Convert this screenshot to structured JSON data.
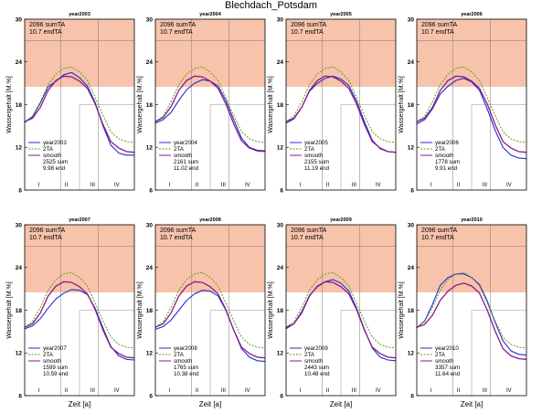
{
  "title": "Blechdach_Potsdam",
  "colors": {
    "zone": "#f6b99c",
    "year": "#1f2fd0",
    "ta2": "#5c9e1a",
    "smooth": "#8a1a86",
    "gray": "#7a7a7a",
    "frame": "#000000"
  },
  "chart_data": [
    {
      "type": "line",
      "title": "year2003",
      "ylabel": "Wassergehalt [M.%]",
      "xlabel": "",
      "ylim": [
        6,
        30
      ],
      "yticks": [
        6,
        12,
        18,
        24,
        30
      ],
      "xtick_labels": [
        "I",
        "II",
        "III",
        "IV"
      ],
      "zone": [
        20.5,
        30
      ],
      "ref_text": [
        "2096 sumTA",
        "10.7 endTA"
      ],
      "legend": [
        "year2003",
        "2TA",
        "smooth",
        "2525 sum",
        "9.98 end"
      ],
      "series": [
        {
          "name": "year2003",
          "values": [
            15.5,
            16.3,
            18.2,
            20.5,
            21.3,
            22.2,
            22.5,
            21.8,
            20.6,
            18.3,
            15.0,
            12.3,
            11.2,
            10.9,
            10.9
          ]
        },
        {
          "name": "2TA",
          "values": [
            15.6,
            16.4,
            18.4,
            20.8,
            22.3,
            23.1,
            23.3,
            22.6,
            21.4,
            19.0,
            16.5,
            14.2,
            13.2,
            12.8,
            12.7
          ]
        },
        {
          "name": "smooth",
          "values": [
            15.6,
            16.1,
            17.6,
            20.0,
            21.4,
            22.0,
            21.9,
            21.3,
            20.3,
            18.1,
            15.2,
            12.8,
            11.9,
            11.4,
            11.3
          ]
        }
      ]
    },
    {
      "type": "line",
      "title": "year2004",
      "ylabel": "Wassergehalt [M.%]",
      "xlabel": "",
      "ylim": [
        6,
        30
      ],
      "yticks": [
        6,
        12,
        18,
        24,
        30
      ],
      "xtick_labels": [
        "I",
        "II",
        "III",
        "IV"
      ],
      "zone": [
        20.5,
        30
      ],
      "ref_text": [
        "2096 sumTA",
        "10.7 endTA"
      ],
      "legend": [
        "year2004",
        "2TA",
        "smooth",
        "2161 sum",
        "11.02 end"
      ],
      "series": [
        {
          "name": "year2004",
          "values": [
            15.4,
            15.9,
            16.9,
            18.6,
            20.1,
            21.0,
            21.5,
            21.3,
            20.6,
            18.6,
            15.9,
            13.3,
            12.0,
            11.6,
            11.5
          ]
        },
        {
          "name": "2TA",
          "values": [
            15.6,
            16.4,
            18.4,
            20.8,
            22.3,
            23.1,
            23.3,
            22.6,
            21.4,
            19.0,
            16.5,
            14.2,
            13.2,
            12.8,
            12.7
          ]
        },
        {
          "name": "smooth",
          "values": [
            15.6,
            16.2,
            17.7,
            20.0,
            21.4,
            22.0,
            21.9,
            21.3,
            20.3,
            18.1,
            15.3,
            12.9,
            11.9,
            11.5,
            11.4
          ]
        }
      ]
    },
    {
      "type": "line",
      "title": "year2005",
      "ylabel": "Wassergehalt [M.%]",
      "xlabel": "",
      "ylim": [
        6,
        30
      ],
      "yticks": [
        6,
        12,
        18,
        24,
        30
      ],
      "xtick_labels": [
        "I",
        "II",
        "III",
        "IV"
      ],
      "zone": [
        20.5,
        30
      ],
      "ref_text": [
        "2096 sumTA",
        "10.7 endTA"
      ],
      "legend": [
        "year2005",
        "2TA",
        "smooth",
        "2155 sum",
        "11.19 end"
      ],
      "series": [
        {
          "name": "year2005",
          "values": [
            15.4,
            16.0,
            17.6,
            19.9,
            21.0,
            21.7,
            22.0,
            21.6,
            20.7,
            18.5,
            15.6,
            13.0,
            11.8,
            11.4,
            11.3
          ]
        },
        {
          "name": "2TA",
          "values": [
            15.6,
            16.4,
            18.4,
            20.8,
            22.3,
            23.1,
            23.3,
            22.6,
            21.4,
            19.0,
            16.5,
            14.2,
            13.2,
            12.8,
            12.7
          ]
        },
        {
          "name": "smooth",
          "values": [
            15.6,
            16.1,
            17.6,
            20.0,
            21.4,
            22.0,
            21.9,
            21.3,
            20.3,
            18.1,
            15.2,
            12.8,
            11.9,
            11.4,
            11.3
          ]
        }
      ]
    },
    {
      "type": "line",
      "title": "year2006",
      "ylabel": "Wassergehalt [M.%]",
      "xlabel": "",
      "ylim": [
        6,
        30
      ],
      "yticks": [
        6,
        12,
        18,
        24,
        30
      ],
      "xtick_labels": [
        "I",
        "II",
        "III",
        "IV"
      ],
      "zone": [
        20.5,
        30
      ],
      "ref_text": [
        "2096 sumTA",
        "10.7 endTA"
      ],
      "legend": [
        "year2006",
        "2TA",
        "smooth",
        "1778 sum",
        "9.91 end"
      ],
      "series": [
        {
          "name": "year2006",
          "values": [
            15.3,
            15.9,
            17.4,
            19.5,
            20.6,
            21.4,
            21.7,
            21.2,
            20.0,
            17.4,
            14.4,
            12.0,
            10.9,
            10.5,
            10.4
          ]
        },
        {
          "name": "2TA",
          "values": [
            15.6,
            16.4,
            18.4,
            20.8,
            22.3,
            23.1,
            23.3,
            22.6,
            21.4,
            19.0,
            16.5,
            14.2,
            13.2,
            12.8,
            12.7
          ]
        },
        {
          "name": "smooth",
          "values": [
            15.6,
            16.1,
            17.6,
            20.0,
            21.4,
            22.0,
            21.9,
            21.3,
            20.3,
            18.1,
            15.2,
            12.8,
            11.9,
            11.4,
            11.3
          ]
        }
      ]
    },
    {
      "type": "line",
      "title": "year2007",
      "ylabel": "Wassergehalt [M.%]",
      "xlabel": "Zeit [a]",
      "ylim": [
        6,
        30
      ],
      "yticks": [
        6,
        12,
        18,
        24,
        30
      ],
      "xtick_labels": [
        "I",
        "II",
        "III",
        "IV"
      ],
      "zone": [
        20.5,
        30
      ],
      "ref_text": [
        "2096 sumTA",
        "10.7 endTA"
      ],
      "legend": [
        "year2007",
        "2TA",
        "smooth",
        "1599 sum",
        "10.59 end"
      ],
      "series": [
        {
          "name": "year2007",
          "values": [
            15.4,
            15.8,
            16.8,
            18.3,
            19.6,
            20.4,
            20.9,
            20.8,
            20.2,
            18.3,
            15.5,
            12.9,
            11.6,
            11.1,
            11.0
          ]
        },
        {
          "name": "2TA",
          "values": [
            15.6,
            16.4,
            18.4,
            20.8,
            22.3,
            23.1,
            23.3,
            22.6,
            21.4,
            19.0,
            16.5,
            14.2,
            13.2,
            12.8,
            12.7
          ]
        },
        {
          "name": "smooth",
          "values": [
            15.6,
            16.1,
            17.6,
            20.0,
            21.4,
            22.0,
            21.9,
            21.3,
            20.3,
            18.1,
            15.2,
            12.8,
            11.9,
            11.4,
            11.3
          ]
        }
      ]
    },
    {
      "type": "line",
      "title": "year2008",
      "ylabel": "Wassergehalt [M.%]",
      "xlabel": "Zeit [a]",
      "ylim": [
        6,
        30
      ],
      "yticks": [
        6,
        12,
        18,
        24,
        30
      ],
      "xtick_labels": [
        "I",
        "II",
        "III",
        "IV"
      ],
      "zone": [
        20.5,
        30
      ],
      "ref_text": [
        "2096 sumTA",
        "10.7 endTA"
      ],
      "legend": [
        "year2008",
        "2TA",
        "smooth",
        "1765 sum",
        "10.38 end"
      ],
      "series": [
        {
          "name": "year2008",
          "values": [
            15.3,
            15.7,
            16.6,
            18.0,
            19.4,
            20.3,
            20.8,
            20.7,
            20.0,
            18.0,
            15.2,
            12.6,
            11.4,
            10.9,
            10.8
          ]
        },
        {
          "name": "2TA",
          "values": [
            15.6,
            16.4,
            18.4,
            20.8,
            22.3,
            23.1,
            23.3,
            22.6,
            21.4,
            19.0,
            16.5,
            14.2,
            13.2,
            12.8,
            12.7
          ]
        },
        {
          "name": "smooth",
          "values": [
            15.6,
            16.1,
            17.6,
            20.0,
            21.4,
            22.0,
            21.9,
            21.3,
            20.3,
            18.1,
            15.2,
            12.8,
            11.9,
            11.4,
            11.3
          ]
        }
      ]
    },
    {
      "type": "line",
      "title": "year2009",
      "ylabel": "Wassergehalt [M.%]",
      "xlabel": "Zeit [a]",
      "ylim": [
        6,
        30
      ],
      "yticks": [
        6,
        12,
        18,
        24,
        30
      ],
      "xtick_labels": [
        "I",
        "II",
        "III",
        "IV"
      ],
      "zone": [
        20.5,
        30
      ],
      "ref_text": [
        "2096 sumTA",
        "10.7 endTA"
      ],
      "legend": [
        "year2009",
        "2TA",
        "smooth",
        "2443 sum",
        "10.48 end"
      ],
      "series": [
        {
          "name": "year2009",
          "values": [
            15.4,
            16.1,
            17.8,
            20.1,
            21.3,
            22.0,
            22.3,
            21.8,
            20.7,
            18.3,
            15.3,
            12.7,
            11.4,
            11.0,
            10.9
          ]
        },
        {
          "name": "2TA",
          "values": [
            15.6,
            16.4,
            18.4,
            20.8,
            22.3,
            23.1,
            23.3,
            22.6,
            21.4,
            19.0,
            16.5,
            14.2,
            13.2,
            12.8,
            12.7
          ]
        },
        {
          "name": "smooth",
          "values": [
            15.6,
            16.1,
            17.6,
            20.0,
            21.4,
            22.0,
            21.9,
            21.3,
            20.3,
            18.1,
            15.2,
            12.8,
            11.9,
            11.4,
            11.3
          ]
        }
      ]
    },
    {
      "type": "line",
      "title": "year2010",
      "ylabel": "Wassergehalt [M.%]",
      "xlabel": "Zeit [a]",
      "ylim": [
        6,
        30
      ],
      "yticks": [
        6,
        12,
        18,
        24,
        30
      ],
      "xtick_labels": [
        "I",
        "II",
        "III",
        "IV"
      ],
      "zone": [
        20.5,
        30
      ],
      "ref_text": [
        "2096 sumTA",
        "10.7 endTA"
      ],
      "legend": [
        "year2010",
        "2TA",
        "smooth",
        "3357 sum",
        "11.64 end"
      ],
      "series": [
        {
          "name": "year2010",
          "values": [
            15.5,
            16.5,
            18.8,
            21.5,
            22.6,
            23.1,
            23.1,
            22.6,
            21.6,
            19.3,
            16.3,
            13.7,
            12.3,
            11.8,
            11.7
          ]
        },
        {
          "name": "2TA",
          "values": [
            15.6,
            16.4,
            18.4,
            20.8,
            22.3,
            23.1,
            23.3,
            22.6,
            21.4,
            19.0,
            16.5,
            14.2,
            13.2,
            12.8,
            12.7
          ]
        },
        {
          "name": "smooth",
          "values": [
            15.6,
            16.0,
            17.3,
            19.4,
            20.7,
            21.5,
            21.8,
            21.4,
            20.4,
            18.0,
            15.1,
            12.6,
            11.6,
            11.2,
            11.1
          ]
        }
      ]
    }
  ]
}
